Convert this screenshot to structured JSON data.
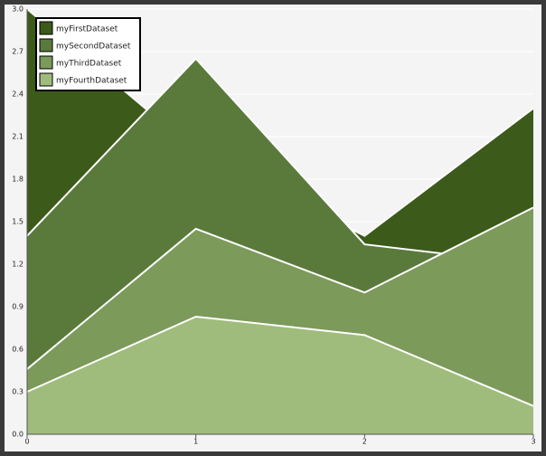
{
  "chart_data": {
    "type": "area",
    "x": [
      0,
      1,
      2,
      3
    ],
    "series": [
      {
        "name": "myFirstDataset",
        "color": "#3c5a1a",
        "values": [
          3.0,
          2.0,
          1.4,
          2.3
        ]
      },
      {
        "name": "mySecondDataset",
        "color": "#5a7a3c",
        "values": [
          1.4,
          2.65,
          1.34,
          1.2
        ]
      },
      {
        "name": "myThirdDataset",
        "color": "#7c9a5a",
        "values": [
          0.46,
          1.45,
          1.0,
          1.6
        ]
      },
      {
        "name": "myFourthDataset",
        "color": "#a0bc7c",
        "values": [
          0.3,
          0.83,
          0.7,
          0.2
        ]
      }
    ],
    "xlim": [
      0,
      3
    ],
    "xticks": [
      0,
      1,
      2,
      3
    ],
    "ylim": [
      0,
      3
    ],
    "yticks": [
      {
        "value": 0,
        "label": "0.0"
      },
      0.3,
      0.6,
      0.9,
      1.2,
      1.5,
      1.8,
      2.1,
      2.4,
      2.7,
      {
        "value": 3,
        "label": "3.0"
      }
    ],
    "grid": true,
    "legend": "top-left"
  }
}
